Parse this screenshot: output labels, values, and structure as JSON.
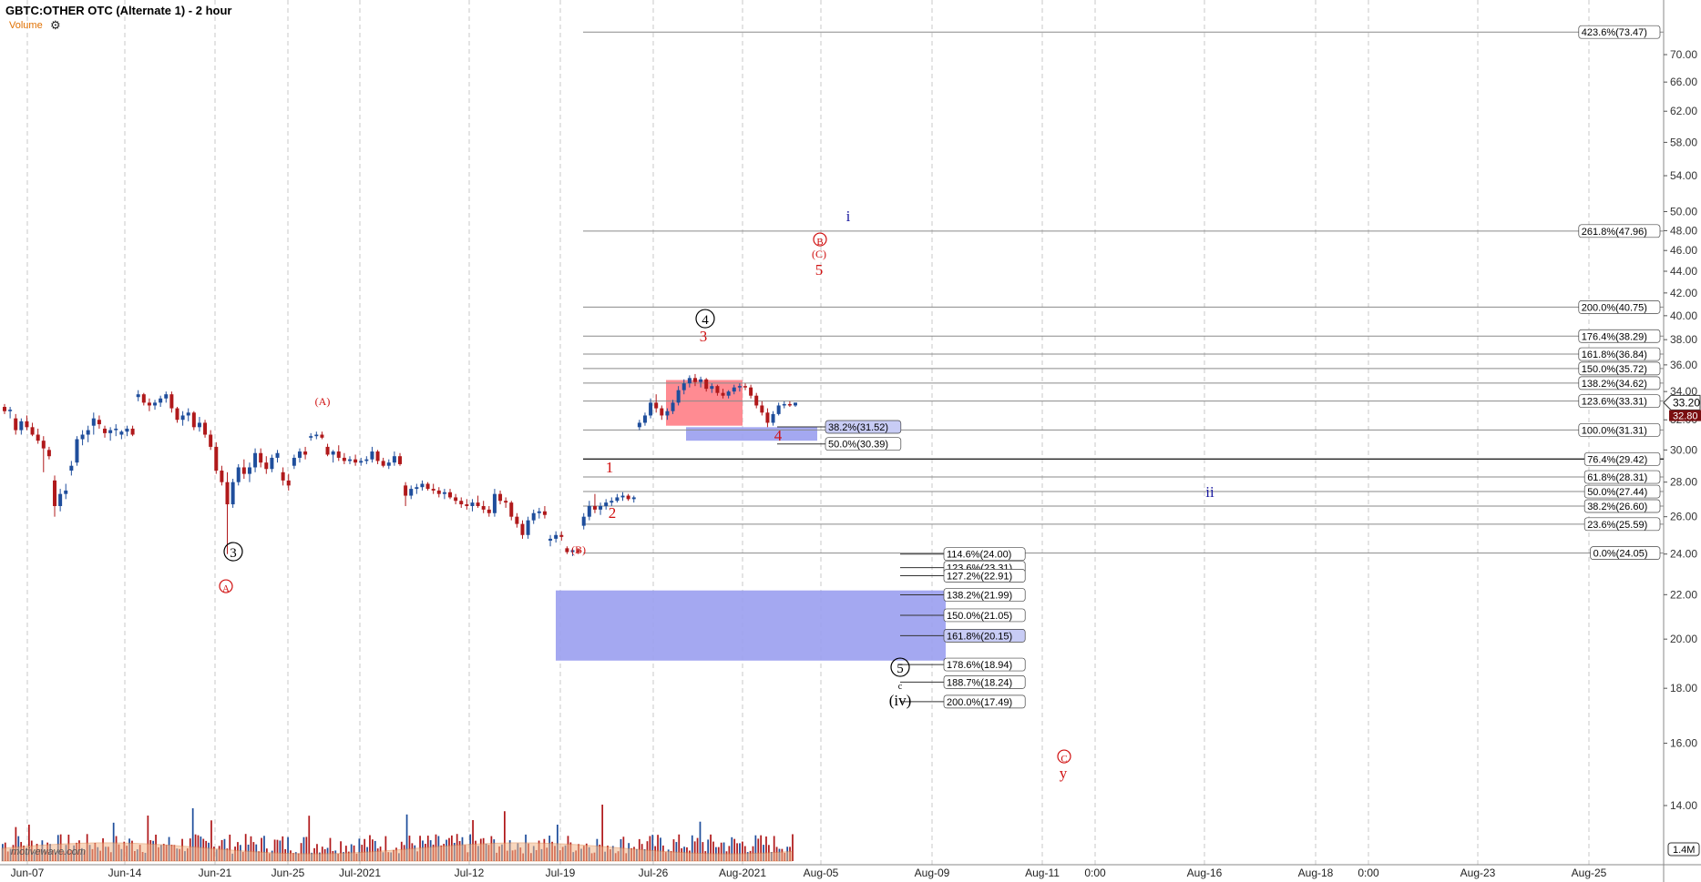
{
  "header": {
    "title": "GBTC:OTHER OTC (Alternate 1) - 2 hour",
    "volume_label": "Volume",
    "gear_icon": "gear-icon"
  },
  "watermark": "motivewave.com",
  "colors": {
    "up": "#1f4e9c",
    "down": "#b0191b",
    "red_label": "#d01010",
    "blue_label": "#1a1aa0",
    "red_box": "#ff7e86",
    "blue_box": "#9a9ef0"
  },
  "chart_data": {
    "type": "candlestick",
    "y_axis": {
      "ticks": [
        14.0,
        16.0,
        18.0,
        20.0,
        22.0,
        24.0,
        26.0,
        28.0,
        30.0,
        32.0,
        34.0,
        36.0,
        38.0,
        40.0,
        42.0,
        44.0,
        46.0,
        48.0,
        50.0,
        54.0,
        58.0,
        62.0,
        66.0,
        70.0
      ],
      "scale": "log",
      "current_price": "33.20",
      "current_price2": "32.80",
      "volume_tick": "1.4M"
    },
    "x_axis": {
      "ticks": [
        "Jun-07",
        "Jun-14",
        "Jun-21",
        "Jun-25",
        "Jul-2021",
        "Jul-12",
        "Jul-19",
        "Jul-26",
        "Aug-2021",
        "Aug-05",
        "Aug-09",
        "Aug-11",
        "0:00",
        "Aug-16",
        "Aug-18",
        "0:00",
        "Aug-23",
        "Aug-25"
      ]
    },
    "fib_lines_upper": [
      {
        "label": "423.6%(73.47)",
        "value": 73.47
      },
      {
        "label": "261.8%(47.96)",
        "value": 47.96
      },
      {
        "label": "200.0%(40.75)",
        "value": 40.75
      },
      {
        "label": "176.4%(38.29)",
        "value": 38.29
      },
      {
        "label": "161.8%(36.84)",
        "value": 36.84
      },
      {
        "label": "150.0%(35.72)",
        "value": 35.72
      },
      {
        "label": "138.2%(34.62)",
        "value": 34.62
      },
      {
        "label": "123.6%(33.31)",
        "value": 33.31
      },
      {
        "label": "100.0%(31.31)",
        "value": 31.31
      },
      {
        "label": "76.4%(29.42)",
        "value": 29.42
      },
      {
        "label": "61.8%(28.31)",
        "value": 28.31
      },
      {
        "label": "50.0%(27.44)",
        "value": 27.44
      },
      {
        "label": "38.2%(26.60)",
        "value": 26.6
      },
      {
        "label": "23.6%(25.59)",
        "value": 25.59
      },
      {
        "label": "0.0%(24.05)",
        "value": 24.05
      }
    ],
    "fib_lines_lower": [
      {
        "label": "114.6%(24.00)",
        "value": 24.0
      },
      {
        "label": "123.6%(23.31)",
        "value": 23.31
      },
      {
        "label": "127.2%(22.91)",
        "value": 22.91
      },
      {
        "label": "138.2%(21.99)",
        "value": 21.99
      },
      {
        "label": "150.0%(21.05)",
        "value": 21.05
      },
      {
        "label": "161.8%(20.15)",
        "value": 20.15
      },
      {
        "label": "178.6%(18.94)",
        "value": 18.94
      },
      {
        "label": "188.7%(18.24)",
        "value": 18.24
      },
      {
        "label": "200.0%(17.49)",
        "value": 17.49
      }
    ],
    "fib_lines_mid": [
      {
        "label": "38.2%(31.52)",
        "value": 31.52
      },
      {
        "label": "50.0%(30.39)",
        "value": 30.39
      }
    ],
    "wave_labels": [
      {
        "text": "i",
        "color": "blue"
      },
      {
        "text": "B",
        "color": "red",
        "circled": true
      },
      {
        "text": "(C)",
        "color": "red"
      },
      {
        "text": "5",
        "color": "red"
      },
      {
        "text": "4",
        "color": "black",
        "circled": true
      },
      {
        "text": "3",
        "color": "red"
      },
      {
        "text": "4",
        "color": "red"
      },
      {
        "text": "1",
        "color": "red"
      },
      {
        "text": "2",
        "color": "red"
      },
      {
        "text": "(A)",
        "color": "red"
      },
      {
        "text": "(B)",
        "color": "red"
      },
      {
        "text": "3",
        "color": "black",
        "circled": true
      },
      {
        "text": "A",
        "color": "red",
        "circled": true
      },
      {
        "text": "ii",
        "color": "blue"
      },
      {
        "text": "5",
        "color": "black",
        "circled": true
      },
      {
        "text": "c",
        "color": "black"
      },
      {
        "text": "(iv)",
        "color": "black"
      },
      {
        "text": "C",
        "color": "red",
        "circled": true
      },
      {
        "text": "y",
        "color": "red"
      }
    ],
    "zones": [
      {
        "name": "red-box",
        "low": 31.6,
        "high": 34.85
      },
      {
        "name": "blue-box-mid",
        "low": 30.6,
        "high": 31.5
      },
      {
        "name": "blue-box-lower",
        "low": 19.1,
        "high": 22.2
      }
    ],
    "candles": [
      {
        "o": 32.9,
        "h": 33.1,
        "l": 32.4,
        "c": 32.6
      },
      {
        "o": 32.6,
        "h": 32.9,
        "l": 32.1,
        "c": 32.7
      },
      {
        "o": 32.1,
        "h": 32.4,
        "l": 31.0,
        "c": 31.3
      },
      {
        "o": 31.3,
        "h": 32.1,
        "l": 31.0,
        "c": 31.9
      },
      {
        "o": 31.9,
        "h": 32.3,
        "l": 31.3,
        "c": 31.5
      },
      {
        "o": 31.5,
        "h": 31.8,
        "l": 30.9,
        "c": 31.0
      },
      {
        "o": 31.0,
        "h": 31.4,
        "l": 30.4,
        "c": 30.6
      },
      {
        "o": 30.6,
        "h": 30.9,
        "l": 28.6,
        "c": 30.1
      },
      {
        "o": 30.0,
        "h": 30.2,
        "l": 29.4,
        "c": 29.6
      },
      {
        "o": 28.1,
        "h": 28.4,
        "l": 26.0,
        "c": 26.6
      },
      {
        "o": 26.6,
        "h": 27.6,
        "l": 26.3,
        "c": 27.3
      },
      {
        "o": 27.3,
        "h": 27.9,
        "l": 27.0,
        "c": 27.5
      },
      {
        "o": 28.7,
        "h": 29.3,
        "l": 28.4,
        "c": 29.0
      },
      {
        "o": 29.2,
        "h": 30.9,
        "l": 29.0,
        "c": 30.7
      },
      {
        "o": 30.7,
        "h": 31.3,
        "l": 30.3,
        "c": 31.0
      },
      {
        "o": 31.0,
        "h": 31.6,
        "l": 30.5,
        "c": 31.3
      },
      {
        "o": 31.6,
        "h": 32.5,
        "l": 31.0,
        "c": 32.1
      },
      {
        "o": 32.0,
        "h": 32.3,
        "l": 31.4,
        "c": 31.7
      },
      {
        "o": 31.4,
        "h": 31.6,
        "l": 30.8,
        "c": 31.1
      },
      {
        "o": 31.1,
        "h": 31.5,
        "l": 30.6,
        "c": 31.3
      },
      {
        "o": 31.3,
        "h": 31.7,
        "l": 30.9,
        "c": 31.4
      },
      {
        "o": 31.0,
        "h": 31.3,
        "l": 30.7,
        "c": 31.2
      },
      {
        "o": 31.2,
        "h": 31.6,
        "l": 30.9,
        "c": 31.4
      },
      {
        "o": 31.4,
        "h": 31.6,
        "l": 30.9,
        "c": 31.0
      },
      {
        "o": 33.6,
        "h": 34.1,
        "l": 33.3,
        "c": 33.8
      },
      {
        "o": 33.8,
        "h": 33.9,
        "l": 33.0,
        "c": 33.2
      },
      {
        "o": 33.2,
        "h": 33.5,
        "l": 32.6,
        "c": 33.0
      },
      {
        "o": 33.0,
        "h": 33.4,
        "l": 32.7,
        "c": 33.2
      },
      {
        "o": 33.2,
        "h": 33.7,
        "l": 32.9,
        "c": 33.5
      },
      {
        "o": 33.5,
        "h": 34.0,
        "l": 33.2,
        "c": 33.8
      },
      {
        "o": 33.8,
        "h": 34.0,
        "l": 32.5,
        "c": 32.8
      },
      {
        "o": 32.8,
        "h": 32.9,
        "l": 31.8,
        "c": 32.0
      },
      {
        "o": 32.0,
        "h": 32.6,
        "l": 31.6,
        "c": 32.3
      },
      {
        "o": 32.3,
        "h": 32.8,
        "l": 31.9,
        "c": 32.5
      },
      {
        "o": 32.5,
        "h": 32.6,
        "l": 31.3,
        "c": 31.5
      },
      {
        "o": 31.5,
        "h": 32.2,
        "l": 31.2,
        "c": 31.8
      },
      {
        "o": 31.8,
        "h": 32.0,
        "l": 30.8,
        "c": 31.0
      },
      {
        "o": 31.0,
        "h": 31.3,
        "l": 30.0,
        "c": 30.2
      },
      {
        "o": 30.2,
        "h": 30.5,
        "l": 28.5,
        "c": 28.7
      },
      {
        "o": 28.7,
        "h": 29.0,
        "l": 27.8,
        "c": 28.0
      },
      {
        "o": 28.0,
        "h": 28.6,
        "l": 24.0,
        "c": 26.7
      },
      {
        "o": 26.7,
        "h": 28.2,
        "l": 26.5,
        "c": 28.0
      },
      {
        "o": 28.0,
        "h": 29.1,
        "l": 27.8,
        "c": 28.9
      },
      {
        "o": 28.9,
        "h": 29.4,
        "l": 28.2,
        "c": 28.5
      },
      {
        "o": 28.5,
        "h": 29.2,
        "l": 28.0,
        "c": 28.9
      },
      {
        "o": 28.9,
        "h": 30.1,
        "l": 28.6,
        "c": 29.8
      },
      {
        "o": 29.8,
        "h": 30.1,
        "l": 28.9,
        "c": 29.2
      },
      {
        "o": 29.2,
        "h": 29.6,
        "l": 28.5,
        "c": 28.8
      },
      {
        "o": 28.8,
        "h": 29.7,
        "l": 28.6,
        "c": 29.5
      },
      {
        "o": 29.5,
        "h": 30.0,
        "l": 29.2,
        "c": 29.8
      },
      {
        "o": 28.6,
        "h": 28.9,
        "l": 27.8,
        "c": 28.1
      },
      {
        "o": 28.1,
        "h": 28.5,
        "l": 27.5,
        "c": 27.8
      },
      {
        "o": 29.0,
        "h": 29.7,
        "l": 28.8,
        "c": 29.5
      },
      {
        "o": 29.5,
        "h": 30.1,
        "l": 29.2,
        "c": 29.9
      },
      {
        "o": 29.9,
        "h": 30.2,
        "l": 29.4,
        "c": 29.7
      },
      {
        "o": 30.8,
        "h": 31.1,
        "l": 30.6,
        "c": 30.9
      },
      {
        "o": 30.9,
        "h": 31.2,
        "l": 30.7,
        "c": 31.0
      },
      {
        "o": 31.0,
        "h": 31.2,
        "l": 30.7,
        "c": 30.8
      },
      {
        "o": 30.2,
        "h": 30.4,
        "l": 29.6,
        "c": 29.7
      },
      {
        "o": 29.7,
        "h": 30.0,
        "l": 29.2,
        "c": 29.9
      },
      {
        "o": 29.9,
        "h": 30.3,
        "l": 29.3,
        "c": 29.5
      },
      {
        "o": 29.5,
        "h": 29.8,
        "l": 29.1,
        "c": 29.3
      },
      {
        "o": 29.3,
        "h": 29.6,
        "l": 29.1,
        "c": 29.4
      },
      {
        "o": 29.4,
        "h": 29.7,
        "l": 29.0,
        "c": 29.2
      },
      {
        "o": 29.2,
        "h": 29.5,
        "l": 29.0,
        "c": 29.3
      },
      {
        "o": 29.3,
        "h": 29.6,
        "l": 29.1,
        "c": 29.4
      },
      {
        "o": 29.4,
        "h": 30.2,
        "l": 29.2,
        "c": 29.9
      },
      {
        "o": 29.9,
        "h": 30.0,
        "l": 29.1,
        "c": 29.3
      },
      {
        "o": 29.3,
        "h": 29.5,
        "l": 28.9,
        "c": 29.0
      },
      {
        "o": 29.0,
        "h": 29.4,
        "l": 28.8,
        "c": 29.2
      },
      {
        "o": 29.2,
        "h": 29.9,
        "l": 29.0,
        "c": 29.6
      },
      {
        "o": 29.6,
        "h": 29.8,
        "l": 29.0,
        "c": 29.1
      },
      {
        "o": 27.8,
        "h": 28.0,
        "l": 26.6,
        "c": 27.2
      },
      {
        "o": 27.2,
        "h": 27.8,
        "l": 27.0,
        "c": 27.6
      },
      {
        "o": 27.6,
        "h": 27.9,
        "l": 27.3,
        "c": 27.7
      },
      {
        "o": 27.7,
        "h": 28.1,
        "l": 27.5,
        "c": 27.9
      },
      {
        "o": 27.9,
        "h": 28.0,
        "l": 27.5,
        "c": 27.6
      },
      {
        "o": 27.6,
        "h": 27.9,
        "l": 27.3,
        "c": 27.5
      },
      {
        "o": 27.5,
        "h": 27.7,
        "l": 27.1,
        "c": 27.3
      },
      {
        "o": 27.3,
        "h": 27.6,
        "l": 27.0,
        "c": 27.4
      },
      {
        "o": 27.4,
        "h": 27.6,
        "l": 27.0,
        "c": 27.1
      },
      {
        "o": 27.1,
        "h": 27.3,
        "l": 26.7,
        "c": 26.9
      },
      {
        "o": 26.9,
        "h": 27.1,
        "l": 26.5,
        "c": 26.7
      },
      {
        "o": 26.7,
        "h": 27.0,
        "l": 26.4,
        "c": 26.6
      },
      {
        "o": 26.6,
        "h": 27.0,
        "l": 26.3,
        "c": 26.8
      },
      {
        "o": 26.8,
        "h": 27.2,
        "l": 26.5,
        "c": 26.6
      },
      {
        "o": 26.6,
        "h": 26.9,
        "l": 26.2,
        "c": 26.4
      },
      {
        "o": 26.4,
        "h": 26.6,
        "l": 26.0,
        "c": 26.2
      },
      {
        "o": 26.2,
        "h": 27.6,
        "l": 26.0,
        "c": 27.3
      },
      {
        "o": 27.3,
        "h": 27.5,
        "l": 26.7,
        "c": 26.9
      },
      {
        "o": 26.9,
        "h": 27.1,
        "l": 26.5,
        "c": 26.8
      },
      {
        "o": 26.8,
        "h": 26.9,
        "l": 25.8,
        "c": 26.0
      },
      {
        "o": 26.0,
        "h": 26.2,
        "l": 25.4,
        "c": 25.6
      },
      {
        "o": 25.6,
        "h": 25.8,
        "l": 24.8,
        "c": 25.0
      },
      {
        "o": 25.0,
        "h": 26.0,
        "l": 24.8,
        "c": 25.8
      },
      {
        "o": 25.8,
        "h": 26.4,
        "l": 25.6,
        "c": 26.2
      },
      {
        "o": 26.2,
        "h": 26.5,
        "l": 25.9,
        "c": 26.3
      },
      {
        "o": 26.3,
        "h": 26.6,
        "l": 25.9,
        "c": 26.1
      },
      {
        "o": 24.7,
        "h": 25.0,
        "l": 24.4,
        "c": 24.8
      },
      {
        "o": 24.8,
        "h": 25.2,
        "l": 24.6,
        "c": 25.0
      },
      {
        "o": 25.0,
        "h": 25.2,
        "l": 24.7,
        "c": 24.9
      },
      {
        "o": 24.3,
        "h": 24.4,
        "l": 24.0,
        "c": 24.1
      },
      {
        "o": 24.1,
        "h": 24.3,
        "l": 23.9,
        "c": 24.2
      },
      {
        "o": 24.2,
        "h": 24.3,
        "l": 24.0,
        "c": 24.1
      },
      {
        "o": 25.5,
        "h": 26.2,
        "l": 25.3,
        "c": 26.0
      },
      {
        "o": 26.0,
        "h": 26.9,
        "l": 25.8,
        "c": 26.6
      },
      {
        "o": 26.6,
        "h": 27.3,
        "l": 26.2,
        "c": 26.4
      },
      {
        "o": 26.4,
        "h": 26.8,
        "l": 26.1,
        "c": 26.6
      },
      {
        "o": 26.6,
        "h": 27.0,
        "l": 26.4,
        "c": 26.8
      },
      {
        "o": 26.8,
        "h": 27.1,
        "l": 26.6,
        "c": 26.9
      },
      {
        "o": 26.9,
        "h": 27.3,
        "l": 26.8,
        "c": 27.1
      },
      {
        "o": 27.1,
        "h": 27.4,
        "l": 26.9,
        "c": 27.2
      },
      {
        "o": 27.2,
        "h": 27.3,
        "l": 26.9,
        "c": 27.0
      },
      {
        "o": 27.0,
        "h": 27.2,
        "l": 26.8,
        "c": 27.1
      },
      {
        "o": 31.5,
        "h": 32.0,
        "l": 31.3,
        "c": 31.8
      },
      {
        "o": 31.8,
        "h": 32.5,
        "l": 31.6,
        "c": 32.3
      },
      {
        "o": 32.3,
        "h": 33.5,
        "l": 32.1,
        "c": 33.2
      },
      {
        "o": 33.2,
        "h": 33.8,
        "l": 32.5,
        "c": 32.8
      },
      {
        "o": 32.8,
        "h": 33.0,
        "l": 32.0,
        "c": 32.3
      },
      {
        "o": 32.3,
        "h": 32.8,
        "l": 32.0,
        "c": 32.6
      },
      {
        "o": 32.6,
        "h": 33.4,
        "l": 32.4,
        "c": 33.2
      },
      {
        "o": 33.2,
        "h": 34.4,
        "l": 33.0,
        "c": 34.1
      },
      {
        "o": 34.1,
        "h": 34.9,
        "l": 33.8,
        "c": 34.6
      },
      {
        "o": 34.6,
        "h": 35.2,
        "l": 34.3,
        "c": 35.0
      },
      {
        "o": 35.0,
        "h": 35.3,
        "l": 34.4,
        "c": 34.7
      },
      {
        "o": 34.7,
        "h": 35.1,
        "l": 34.3,
        "c": 34.9
      },
      {
        "o": 34.9,
        "h": 35.0,
        "l": 34.0,
        "c": 34.2
      },
      {
        "o": 34.2,
        "h": 34.6,
        "l": 33.9,
        "c": 34.4
      },
      {
        "o": 34.4,
        "h": 34.5,
        "l": 33.7,
        "c": 33.9
      },
      {
        "o": 33.9,
        "h": 34.2,
        "l": 33.5,
        "c": 33.7
      },
      {
        "o": 33.7,
        "h": 34.1,
        "l": 33.5,
        "c": 34.0
      },
      {
        "o": 34.0,
        "h": 34.5,
        "l": 33.8,
        "c": 34.3
      },
      {
        "o": 34.3,
        "h": 34.6,
        "l": 34.0,
        "c": 34.4
      },
      {
        "o": 34.4,
        "h": 34.6,
        "l": 34.1,
        "c": 34.3
      },
      {
        "o": 34.3,
        "h": 34.5,
        "l": 33.5,
        "c": 33.7
      },
      {
        "o": 33.7,
        "h": 33.9,
        "l": 32.8,
        "c": 33.0
      },
      {
        "o": 33.0,
        "h": 33.3,
        "l": 32.3,
        "c": 32.5
      },
      {
        "o": 32.5,
        "h": 32.8,
        "l": 31.5,
        "c": 31.8
      },
      {
        "o": 31.8,
        "h": 32.6,
        "l": 31.6,
        "c": 32.4
      },
      {
        "o": 32.4,
        "h": 33.2,
        "l": 32.3,
        "c": 33.0
      },
      {
        "o": 33.0,
        "h": 33.3,
        "l": 32.8,
        "c": 33.1
      },
      {
        "o": 33.1,
        "h": 33.3,
        "l": 32.9,
        "c": 33.0
      },
      {
        "o": 33.0,
        "h": 33.2,
        "l": 32.9,
        "c": 33.2
      }
    ]
  }
}
